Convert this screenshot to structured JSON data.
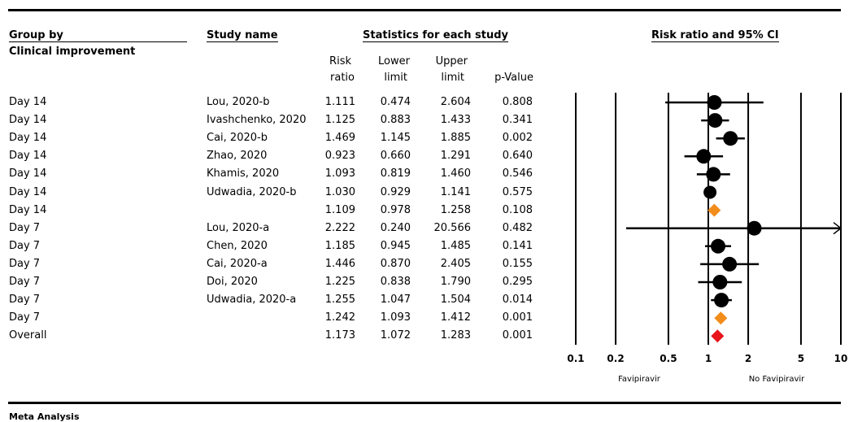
{
  "headers": {
    "group_by": "Group by",
    "group_var": "Clinical improvement",
    "study_name": "Study name",
    "stats": "Statistics for each study",
    "plot": "Risk ratio and 95% CI",
    "risk_line1": "Risk",
    "risk_line2": "ratio",
    "lower_line1": "Lower",
    "lower_line2": "limit",
    "upper_line1": "Upper",
    "upper_line2": "limit",
    "pvalue": "p-Value"
  },
  "rows": [
    {
      "group": "Day 14",
      "study": "Lou, 2020-b",
      "rr": "1.111",
      "lower": "0.474",
      "upper": "2.604",
      "p": "0.808"
    },
    {
      "group": "Day 14",
      "study": "Ivashchenko, 2020",
      "rr": "1.125",
      "lower": "0.883",
      "upper": "1.433",
      "p": "0.341"
    },
    {
      "group": "Day 14",
      "study": "Cai, 2020-b",
      "rr": "1.469",
      "lower": "1.145",
      "upper": "1.885",
      "p": "0.002"
    },
    {
      "group": "Day 14",
      "study": "Zhao, 2020",
      "rr": "0.923",
      "lower": "0.660",
      "upper": "1.291",
      "p": "0.640"
    },
    {
      "group": "Day 14",
      "study": "Khamis, 2020",
      "rr": "1.093",
      "lower": "0.819",
      "upper": "1.460",
      "p": "0.546"
    },
    {
      "group": "Day 14",
      "study": "Udwadia, 2020-b",
      "rr": "1.030",
      "lower": "0.929",
      "upper": "1.141",
      "p": "0.575"
    },
    {
      "group": "Day 14",
      "study": "",
      "rr": "1.109",
      "lower": "0.978",
      "upper": "1.258",
      "p": "0.108"
    },
    {
      "group": "Day 7",
      "study": "Lou, 2020-a",
      "rr": "2.222",
      "lower": "0.240",
      "upper": "20.566",
      "p": "0.482"
    },
    {
      "group": "Day 7",
      "study": "Chen, 2020",
      "rr": "1.185",
      "lower": "0.945",
      "upper": "1.485",
      "p": "0.141"
    },
    {
      "group": "Day 7",
      "study": "Cai, 2020-a",
      "rr": "1.446",
      "lower": "0.870",
      "upper": "2.405",
      "p": "0.155"
    },
    {
      "group": "Day 7",
      "study": "Doi, 2020",
      "rr": "1.225",
      "lower": "0.838",
      "upper": "1.790",
      "p": "0.295"
    },
    {
      "group": "Day 7",
      "study": "Udwadia, 2020-a",
      "rr": "1.255",
      "lower": "1.047",
      "upper": "1.504",
      "p": "0.014"
    },
    {
      "group": "Day 7",
      "study": "",
      "rr": "1.242",
      "lower": "1.093",
      "upper": "1.412",
      "p": "0.001"
    },
    {
      "group": "Overall",
      "study": "",
      "rr": "1.173",
      "lower": "1.072",
      "upper": "1.283",
      "p": "0.001"
    }
  ],
  "chart_data": {
    "type": "forest",
    "x_scale": "log",
    "xlim": [
      0.1,
      10
    ],
    "ticks": [
      {
        "value": 0.1,
        "label": "0.1"
      },
      {
        "value": 0.2,
        "label": "0.2"
      },
      {
        "value": 0.5,
        "label": "0.5"
      },
      {
        "value": 1,
        "label": "1"
      },
      {
        "value": 2,
        "label": "2"
      },
      {
        "value": 5,
        "label": "5"
      },
      {
        "value": 10,
        "label": "10"
      }
    ],
    "left_label": "Favipiravir",
    "right_label": "No Favipiravir",
    "points": [
      {
        "rr": 1.111,
        "lower": 0.474,
        "upper": 2.604,
        "kind": "study",
        "marker_size": 9
      },
      {
        "rr": 1.125,
        "lower": 0.883,
        "upper": 1.433,
        "kind": "study",
        "marker_size": 9
      },
      {
        "rr": 1.469,
        "lower": 1.145,
        "upper": 1.885,
        "kind": "study",
        "marker_size": 9
      },
      {
        "rr": 0.923,
        "lower": 0.66,
        "upper": 1.291,
        "kind": "study",
        "marker_size": 9
      },
      {
        "rr": 1.093,
        "lower": 0.819,
        "upper": 1.46,
        "kind": "study",
        "marker_size": 9
      },
      {
        "rr": 1.03,
        "lower": 0.929,
        "upper": 1.141,
        "kind": "study",
        "marker_size": 8
      },
      {
        "rr": 1.109,
        "lower": 0.978,
        "upper": 1.258,
        "kind": "subtotal",
        "color": "#f28c1a"
      },
      {
        "rr": 2.222,
        "lower": 0.24,
        "upper": 20.566,
        "kind": "study",
        "marker_size": 9,
        "arrow_right": true
      },
      {
        "rr": 1.185,
        "lower": 0.945,
        "upper": 1.485,
        "kind": "study",
        "marker_size": 9
      },
      {
        "rr": 1.446,
        "lower": 0.87,
        "upper": 2.405,
        "kind": "study",
        "marker_size": 9
      },
      {
        "rr": 1.225,
        "lower": 0.838,
        "upper": 1.79,
        "kind": "study",
        "marker_size": 9
      },
      {
        "rr": 1.255,
        "lower": 1.047,
        "upper": 1.504,
        "kind": "study",
        "marker_size": 9
      },
      {
        "rr": 1.242,
        "lower": 1.093,
        "upper": 1.412,
        "kind": "subtotal",
        "color": "#f28c1a"
      },
      {
        "rr": 1.173,
        "lower": 1.072,
        "upper": 1.283,
        "kind": "overall",
        "color": "#e8141a"
      }
    ]
  },
  "footer": {
    "label": "Meta Analysis"
  }
}
